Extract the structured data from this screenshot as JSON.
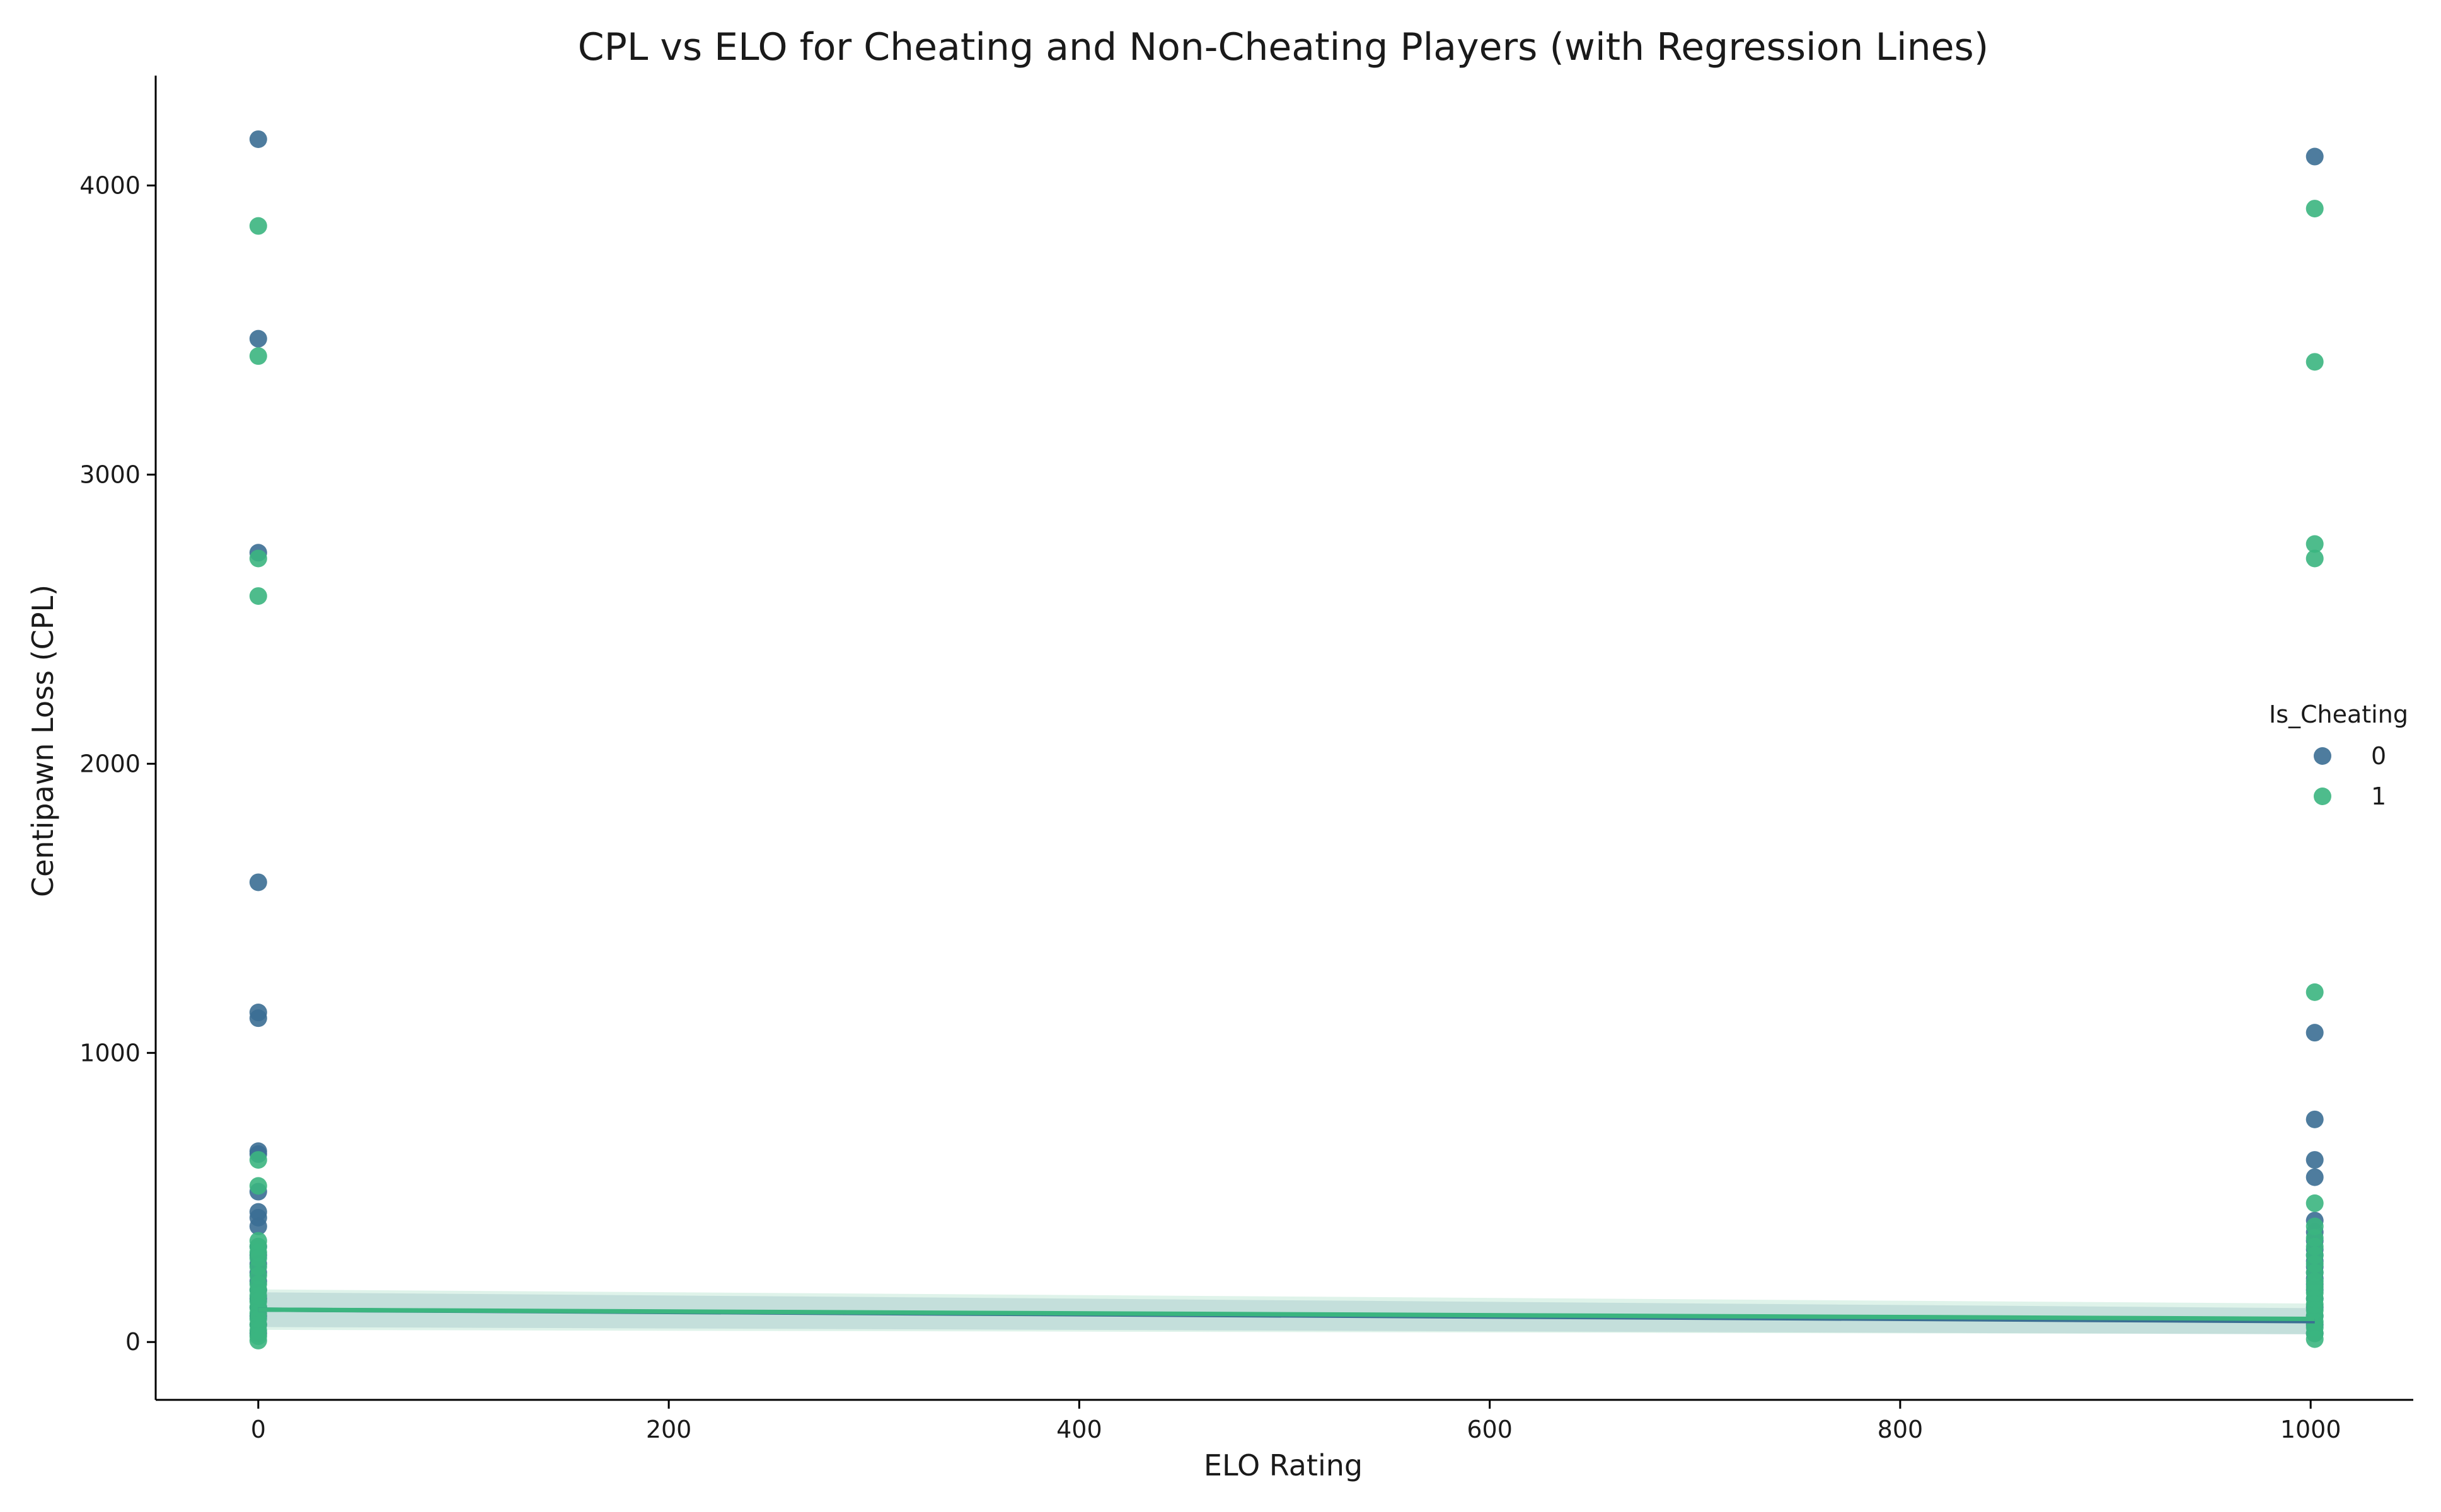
{
  "chart_data": {
    "type": "scatter",
    "title": "CPL vs ELO for Cheating and Non-Cheating Players (with Regression Lines)",
    "xlabel": "ELO Rating",
    "ylabel": "Centipawn Loss (CPL)",
    "xlim": [
      -50,
      1050
    ],
    "ylim": [
      -200,
      4380
    ],
    "xticks": [
      0,
      200,
      400,
      600,
      800,
      1000
    ],
    "yticks": [
      0,
      1000,
      2000,
      3000,
      4000
    ],
    "grid": false,
    "legend": {
      "title": "Is_Cheating",
      "placement": "center-right"
    },
    "series": [
      {
        "name": "0",
        "color": "#3b6e93",
        "points": [
          [
            0,
            4160
          ],
          [
            0,
            3470
          ],
          [
            0,
            2730
          ],
          [
            0,
            1590
          ],
          [
            0,
            1140
          ],
          [
            0,
            1120
          ],
          [
            0,
            660
          ],
          [
            0,
            650
          ],
          [
            0,
            520
          ],
          [
            0,
            450
          ],
          [
            0,
            430
          ],
          [
            0,
            400
          ],
          [
            0,
            330
          ],
          [
            0,
            300
          ],
          [
            0,
            270
          ],
          [
            0,
            240
          ],
          [
            0,
            210
          ],
          [
            0,
            180
          ],
          [
            0,
            150
          ],
          [
            0,
            120
          ],
          [
            0,
            90
          ],
          [
            0,
            60
          ],
          [
            0,
            30
          ],
          [
            1002,
            4100
          ],
          [
            1002,
            1070
          ],
          [
            1002,
            770
          ],
          [
            1002,
            630
          ],
          [
            1002,
            570
          ],
          [
            1002,
            420
          ],
          [
            1002,
            380
          ],
          [
            1002,
            350
          ],
          [
            1002,
            320
          ],
          [
            1002,
            300
          ],
          [
            1002,
            280
          ],
          [
            1002,
            260
          ],
          [
            1002,
            240
          ],
          [
            1002,
            220
          ],
          [
            1002,
            200
          ],
          [
            1002,
            180
          ],
          [
            1002,
            150
          ],
          [
            1002,
            120
          ],
          [
            1002,
            90
          ],
          [
            1002,
            60
          ],
          [
            1002,
            30
          ]
        ],
        "regression": {
          "x": [
            0,
            1002
          ],
          "y": [
            112,
            72
          ]
        }
      },
      {
        "name": "1",
        "color": "#3bb57f",
        "points": [
          [
            0,
            3860
          ],
          [
            0,
            3410
          ],
          [
            0,
            2710
          ],
          [
            0,
            2580
          ],
          [
            0,
            630
          ],
          [
            0,
            540
          ],
          [
            0,
            350
          ],
          [
            0,
            330
          ],
          [
            0,
            310
          ],
          [
            0,
            290
          ],
          [
            0,
            260
          ],
          [
            0,
            230
          ],
          [
            0,
            200
          ],
          [
            0,
            180
          ],
          [
            0,
            160
          ],
          [
            0,
            140
          ],
          [
            0,
            120
          ],
          [
            0,
            100
          ],
          [
            0,
            80
          ],
          [
            0,
            60
          ],
          [
            0,
            40
          ],
          [
            0,
            20
          ],
          [
            0,
            5
          ],
          [
            1002,
            3920
          ],
          [
            1002,
            3390
          ],
          [
            1002,
            2760
          ],
          [
            1002,
            2710
          ],
          [
            1002,
            1210
          ],
          [
            1002,
            480
          ],
          [
            1002,
            400
          ],
          [
            1002,
            360
          ],
          [
            1002,
            330
          ],
          [
            1002,
            300
          ],
          [
            1002,
            270
          ],
          [
            1002,
            240
          ],
          [
            1002,
            210
          ],
          [
            1002,
            190
          ],
          [
            1002,
            170
          ],
          [
            1002,
            150
          ],
          [
            1002,
            130
          ],
          [
            1002,
            110
          ],
          [
            1002,
            90
          ],
          [
            1002,
            70
          ],
          [
            1002,
            50
          ],
          [
            1002,
            30
          ],
          [
            1002,
            10
          ]
        ],
        "regression": {
          "x": [
            0,
            1002
          ],
          "y": [
            112,
            80
          ]
        }
      }
    ]
  }
}
